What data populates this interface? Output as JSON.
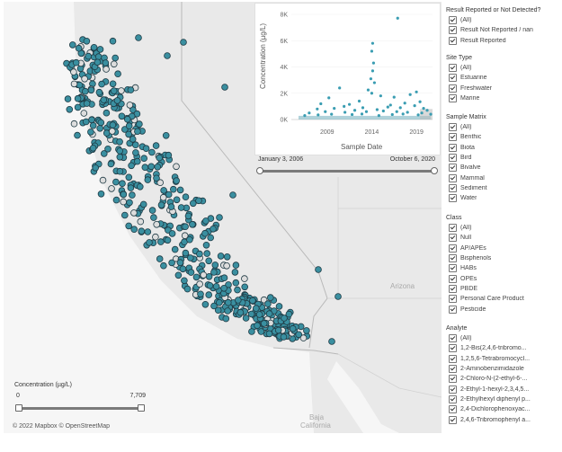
{
  "map": {
    "attribution": "© 2022 Mapbox © OpenStreetMap",
    "labels": [
      {
        "text": "Arizona"
      },
      {
        "text": "Baja"
      },
      {
        "text": "California"
      }
    ],
    "colors": {
      "water": "#ffffff",
      "land": "#e9e9e9",
      "site_marker": "#3a8fa0",
      "marker_outline": "#1f3a44",
      "non_detect_marker": "#dddddd"
    }
  },
  "chart_data": {
    "type": "scatter",
    "xlabel": "Sample Date",
    "ylabel": "Concentration (µg/L)",
    "x_ticks": [
      "2009",
      "2014",
      "2019"
    ],
    "y_ticks": [
      "0K",
      "2K",
      "4K",
      "6K",
      "8K"
    ],
    "ylim": [
      0,
      8000
    ],
    "xlim": [
      2005.0,
      2020.8
    ],
    "color": "#3a9db2",
    "points": [
      [
        2016.9,
        7709
      ],
      [
        2014.1,
        5800
      ],
      [
        2014.0,
        5200
      ],
      [
        2014.2,
        4300
      ],
      [
        2014.1,
        3700
      ],
      [
        2013.9,
        3100
      ],
      [
        2014.3,
        2800
      ],
      [
        2010.4,
        2400
      ],
      [
        2013.6,
        2250
      ],
      [
        2014.0,
        2000
      ],
      [
        2015.0,
        1800
      ],
      [
        2009.2,
        1650
      ],
      [
        2016.5,
        1700
      ],
      [
        2018.3,
        1900
      ],
      [
        2019.0,
        2100
      ],
      [
        2019.4,
        1350
      ],
      [
        2012.6,
        1400
      ],
      [
        2011.5,
        1150
      ],
      [
        2017.7,
        1250
      ],
      [
        2008.3,
        1200
      ],
      [
        2010.9,
        1000
      ],
      [
        2013.0,
        900
      ],
      [
        2015.8,
        950
      ],
      [
        2016.1,
        1100
      ],
      [
        2018.8,
        1050
      ],
      [
        2019.8,
        850
      ],
      [
        2007.9,
        800
      ],
      [
        2009.8,
        850
      ],
      [
        2012.1,
        700
      ],
      [
        2014.6,
        750
      ],
      [
        2017.2,
        900
      ],
      [
        2020.2,
        700
      ],
      [
        2007.0,
        500
      ],
      [
        2008.8,
        600
      ],
      [
        2011.0,
        550
      ],
      [
        2013.4,
        600
      ],
      [
        2015.3,
        650
      ],
      [
        2016.8,
        600
      ],
      [
        2018.0,
        550
      ],
      [
        2019.6,
        500
      ],
      [
        2020.6,
        400
      ],
      [
        2006.5,
        300
      ],
      [
        2008.0,
        350
      ],
      [
        2009.5,
        400
      ],
      [
        2011.8,
        380
      ],
      [
        2012.9,
        420
      ],
      [
        2014.8,
        300
      ],
      [
        2016.3,
        380
      ],
      [
        2017.5,
        420
      ],
      [
        2019.2,
        350
      ]
    ]
  },
  "date_range": {
    "start": "January 3, 2006",
    "end": "October 6, 2020",
    "value_start": 0.0,
    "value_end": 1.0
  },
  "concentration": {
    "title": "Concentration (µg/L)",
    "min": "0",
    "max": "7,709",
    "value_start": 0.0,
    "value_end": 1.0
  },
  "filters": [
    {
      "title": "Result Reported or Not Detected?",
      "options": [
        "(All)",
        "Result Not Reported / nan",
        "Result Reported"
      ]
    },
    {
      "title": "Site Type",
      "options": [
        "(All)",
        "Estuarine",
        "Freshwater",
        "Marine"
      ]
    },
    {
      "title": "Sample Matrix",
      "options": [
        "(All)",
        "Benthic",
        "Biota",
        "Bird",
        "Bivalve",
        "Mammal",
        "Sediment",
        "Water"
      ]
    },
    {
      "title": "Class",
      "options": [
        "(All)",
        "Null",
        "AP/APEs",
        "Bisphenols",
        "HABs",
        "OPEs",
        "PBDE",
        "Personal Care Product",
        "Pesticide"
      ]
    },
    {
      "title": "Analyte",
      "options": [
        "(All)",
        "1,2-Bis(2,4,6-tribromo...",
        "1,2,5,6-Tetrabromocycl...",
        "2-Aminobenzimidazole",
        "2-Chloro-N-(2-ethyl-6-...",
        "2-Ethyl-1-hexyl-2,3,4,5...",
        "2-Ethylhexyl diphenyl p...",
        "2,4-Dichlorophenoxyac...",
        "2,4,6-Tribromophenyl a..."
      ]
    }
  ]
}
